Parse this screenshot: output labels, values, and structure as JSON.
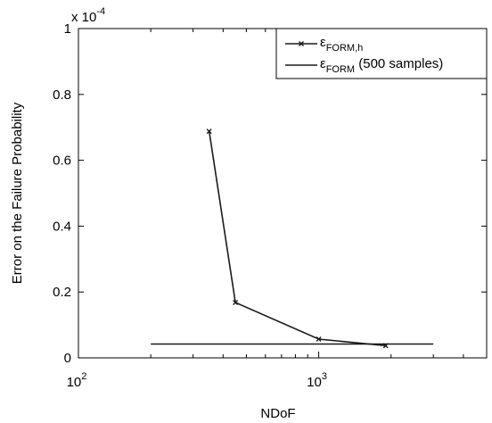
{
  "chart_data": {
    "type": "line",
    "title": "",
    "xlabel": "NDoF",
    "ylabel": "Error on the Failure Probability",
    "x_scale": "log",
    "xlim": [
      100,
      5000
    ],
    "ylim": [
      0,
      0.0001
    ],
    "y_multiplier": "x 10",
    "y_multiplier_exponent": "-4",
    "x_ticks": [
      {
        "value": 100,
        "base": "10",
        "exp": "2"
      },
      {
        "value": 1000,
        "base": "10",
        "exp": "3"
      }
    ],
    "y_ticks": [
      {
        "value": 0,
        "label": "0"
      },
      {
        "value": 2e-05,
        "label": "0.2"
      },
      {
        "value": 4e-05,
        "label": "0.4"
      },
      {
        "value": 6e-05,
        "label": "0.6"
      },
      {
        "value": 8e-05,
        "label": "0.8"
      },
      {
        "value": 0.0001,
        "label": "1"
      }
    ],
    "grid": false,
    "legend_position": "top-right",
    "series": [
      {
        "name": "ε",
        "name_sub": "FORM,h",
        "marker": "x",
        "x": [
          350,
          450,
          1000,
          1900
        ],
        "y": [
          6.88e-05,
          1.68e-05,
          5.7e-06,
          3.7e-06
        ]
      },
      {
        "name": "ε",
        "name_sub": "FORM",
        "name_suffix": " (500 samples)",
        "marker": "none",
        "x": [
          200,
          3000
        ],
        "y": [
          4.2e-06,
          4.2e-06
        ]
      }
    ],
    "colors": {
      "line": "#1a1a1a",
      "axis": "#000000",
      "background": "#ffffff"
    }
  }
}
